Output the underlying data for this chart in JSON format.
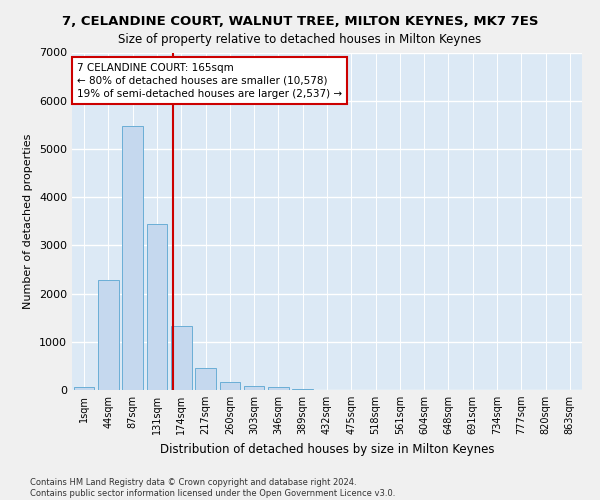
{
  "title": "7, CELANDINE COURT, WALNUT TREE, MILTON KEYNES, MK7 7ES",
  "subtitle": "Size of property relative to detached houses in Milton Keynes",
  "xlabel": "Distribution of detached houses by size in Milton Keynes",
  "ylabel": "Number of detached properties",
  "bar_color": "#c5d8ee",
  "bar_edge_color": "#6aaed6",
  "background_color": "#dce9f5",
  "grid_color": "#ffffff",
  "annotation_line_color": "#cc0000",
  "annotation_box_text": [
    "7 CELANDINE COURT: 165sqm",
    "← 80% of detached houses are smaller (10,578)",
    "19% of semi-detached houses are larger (2,537) →"
  ],
  "categories": [
    "1sqm",
    "44sqm",
    "87sqm",
    "131sqm",
    "174sqm",
    "217sqm",
    "260sqm",
    "303sqm",
    "346sqm",
    "389sqm",
    "432sqm",
    "475sqm",
    "518sqm",
    "561sqm",
    "604sqm",
    "648sqm",
    "691sqm",
    "734sqm",
    "777sqm",
    "820sqm",
    "863sqm"
  ],
  "values": [
    70,
    2280,
    5480,
    3450,
    1320,
    460,
    160,
    90,
    65,
    30,
    0,
    0,
    0,
    0,
    0,
    0,
    0,
    0,
    0,
    0,
    0
  ],
  "property_line_x": 3.65,
  "ylim": [
    0,
    7000
  ],
  "yticks": [
    0,
    1000,
    2000,
    3000,
    4000,
    5000,
    6000,
    7000
  ],
  "footer_lines": [
    "Contains HM Land Registry data © Crown copyright and database right 2024.",
    "Contains public sector information licensed under the Open Government Licence v3.0."
  ],
  "fig_facecolor": "#f0f0f0"
}
